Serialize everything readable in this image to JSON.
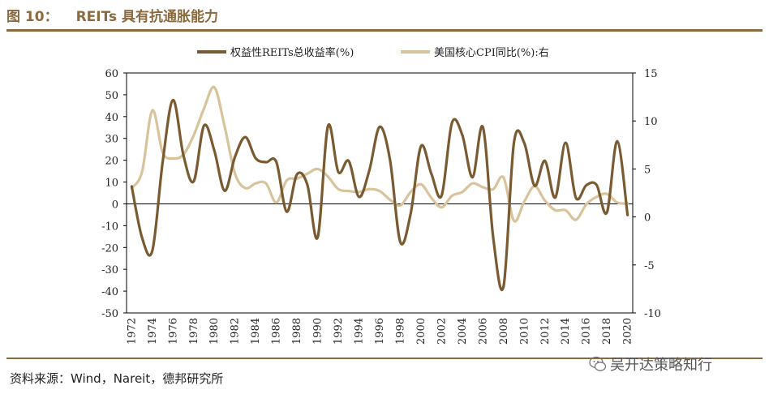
{
  "header": {
    "figure_label": "图 10：",
    "title": "REITs 具有抗通胀能力"
  },
  "footer": {
    "source": "资料来源：Wind，Nareit，德邦研究所",
    "watermark": "吴开达策略知行"
  },
  "colors": {
    "accent": "#8a6a3e",
    "reits": "#7a5a30",
    "cpi": "#d9c39b"
  },
  "chart_data": {
    "type": "line",
    "x_ticks": [
      "1972",
      "1974",
      "1976",
      "1978",
      "1980",
      "1982",
      "1984",
      "1986",
      "1988",
      "1990",
      "1992",
      "1994",
      "1996",
      "1998",
      "2000",
      "2002",
      "2004",
      "2006",
      "2008",
      "2010",
      "2012",
      "2014",
      "2016",
      "2018",
      "2020"
    ],
    "y_left_ticks": [
      "60",
      "50",
      "40",
      "30",
      "20",
      "10",
      "0",
      "-10",
      "-20",
      "-30",
      "-40",
      "-50"
    ],
    "y_right_ticks": [
      "15",
      "10",
      "5",
      "0",
      "-5",
      "-10"
    ],
    "ylim_left": [
      -50,
      60
    ],
    "ylim_right": [
      -10,
      15
    ],
    "series": [
      {
        "name": "权益性REITs总收益率(%)",
        "axis": "left",
        "x": [
          1972,
          1973,
          1974,
          1975,
          1976,
          1977,
          1978,
          1979,
          1980,
          1981,
          1982,
          1983,
          1984,
          1985,
          1986,
          1987,
          1988,
          1989,
          1990,
          1991,
          1992,
          1993,
          1994,
          1995,
          1996,
          1997,
          1998,
          1999,
          2000,
          2001,
          2002,
          2003,
          2004,
          2005,
          2006,
          2007,
          2008,
          2009,
          2010,
          2011,
          2012,
          2013,
          2014,
          2015,
          2016,
          2017,
          2018,
          2019,
          2020
        ],
        "values": [
          8,
          -15.5,
          -21.4,
          19.3,
          47.6,
          22.4,
          10.3,
          35.9,
          24.4,
          6.0,
          21.6,
          30.6,
          20.9,
          19.1,
          19.2,
          -3.6,
          13.5,
          8.8,
          -15.4,
          35.7,
          14.6,
          19.7,
          3.2,
          15.3,
          35.3,
          20.3,
          -17.5,
          -4.6,
          26.4,
          13.9,
          3.8,
          37.1,
          31.6,
          12.2,
          35.1,
          -15.7,
          -37.7,
          28.0,
          27.9,
          8.3,
          19.7,
          2.9,
          28.0,
          2.8,
          8.5,
          8.7,
          -4.0,
          28.7,
          -5.1
        ]
      },
      {
        "name": "美国核心CPI同比(%):右",
        "axis": "right",
        "x": [
          1972,
          1973,
          1974,
          1975,
          1976,
          1977,
          1978,
          1979,
          1980,
          1981,
          1982,
          1983,
          1984,
          1985,
          1986,
          1987,
          1988,
          1989,
          1990,
          1991,
          1992,
          1993,
          1994,
          1995,
          1996,
          1997,
          1998,
          1999,
          2000,
          2001,
          2002,
          2003,
          2004,
          2005,
          2006,
          2007,
          2008,
          2009,
          2010,
          2011,
          2012,
          2013,
          2014,
          2015,
          2016,
          2017,
          2018,
          2019,
          2020
        ],
        "values": [
          3.0,
          4.7,
          11.1,
          6.7,
          6.1,
          6.5,
          8.5,
          11.3,
          13.5,
          9.4,
          4.5,
          3.0,
          3.5,
          3.5,
          1.5,
          3.8,
          4.0,
          4.5,
          5.0,
          4.2,
          2.9,
          2.7,
          2.6,
          2.9,
          2.7,
          1.8,
          1.2,
          2.6,
          3.4,
          2.0,
          1.0,
          2.2,
          2.6,
          3.5,
          3.1,
          2.9,
          4.1,
          -0.4,
          1.6,
          3.2,
          1.7,
          0.7,
          0.7,
          -0.3,
          1.3,
          2.1,
          2.4,
          1.5,
          1.4
        ]
      }
    ],
    "legend_position": "top",
    "grid": false,
    "zero_line": true
  }
}
